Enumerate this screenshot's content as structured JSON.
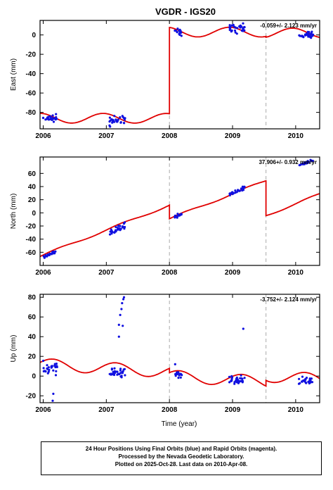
{
  "figure": {
    "title": "VGDR - IGS20",
    "xlabel": "Time (year)",
    "caption": [
      "24 Hour Positions Using Final Orbits (blue) and Rapid Orbits (magenta).",
      "Processed by the Nevada Geodetic Laboratory.",
      "Plotted on 2025-Oct-28. Last data on 2010-Apr-08."
    ]
  },
  "colors": {
    "data": "#1010e0",
    "model": "#e00000",
    "breakline": "#aaaaaa",
    "frame": "#000000"
  },
  "chart_data": [
    {
      "type": "scatter",
      "component": "east",
      "ylabel": "East (mm)",
      "rate_text": "-0.059+/- 2.123 mm/yr",
      "xlim": [
        2005.95,
        2010.38
      ],
      "ylim": [
        -97,
        15
      ],
      "xticks": [
        "2006",
        "2007",
        "2008",
        "2009",
        "2010"
      ],
      "yticks": [
        -80,
        -60,
        -40,
        -20,
        0
      ],
      "grid": false,
      "breaks": [
        2008.0,
        2009.53
      ],
      "model_offsets": [
        [
          2005.95,
          -86
        ],
        [
          2008.0,
          3
        ],
        [
          2009.53,
          2
        ]
      ],
      "model_amplitude": 5,
      "model_phase": 0.3,
      "model_rate": -0.06,
      "clusters": [
        {
          "start": 2006.0,
          "end": 2006.22,
          "center": -86,
          "spread": 3,
          "n": 26
        },
        {
          "start": 2007.05,
          "end": 2007.3,
          "center": -89,
          "spread": 4,
          "n": 30
        },
        {
          "start": 2008.08,
          "end": 2008.2,
          "center": 3,
          "spread": 3,
          "n": 18
        },
        {
          "start": 2008.95,
          "end": 2009.2,
          "center": 7,
          "spread": 4,
          "n": 30
        },
        {
          "start": 2010.05,
          "end": 2010.28,
          "center": 0,
          "spread": 3,
          "n": 26
        }
      ]
    },
    {
      "type": "scatter",
      "component": "north",
      "ylabel": "North (mm)",
      "rate_text": "37.906+/- 0.932 mm/yr",
      "xlim": [
        2005.95,
        2010.38
      ],
      "ylim": [
        -80,
        85
      ],
      "xticks": [
        "2006",
        "2007",
        "2008",
        "2009",
        "2010"
      ],
      "yticks": [
        -60,
        -40,
        -20,
        0,
        20,
        40,
        60
      ],
      "grid": false,
      "breaks": [
        2008.0,
        2009.53
      ],
      "model_offsets": [
        [
          2005.95,
          -66
        ],
        [
          2008.0,
          -9
        ],
        [
          2009.53,
          -4
        ]
      ],
      "model_amplitude": 1.5,
      "model_phase": 0.0,
      "model_rate": 37.9,
      "clusters": [
        {
          "start": 2006.0,
          "end": 2006.22,
          "center": -63,
          "spread": 2,
          "n": 22
        },
        {
          "start": 2007.05,
          "end": 2007.3,
          "center": -24,
          "spread": 4,
          "n": 30
        },
        {
          "start": 2008.08,
          "end": 2008.2,
          "center": -4,
          "spread": 2,
          "n": 16
        },
        {
          "start": 2008.95,
          "end": 2009.2,
          "center": 33,
          "spread": 3,
          "n": 30
        },
        {
          "start": 2010.05,
          "end": 2010.28,
          "center": 76,
          "spread": 2,
          "n": 24
        }
      ]
    },
    {
      "type": "scatter",
      "component": "up",
      "ylabel": "Up (mm)",
      "rate_text": "-3.752+/- 2.124 mm/yr",
      "xlim": [
        2005.95,
        2010.38
      ],
      "ylim": [
        -27,
        83
      ],
      "xticks": [
        "2006",
        "2007",
        "2008",
        "2009",
        "2010"
      ],
      "yticks": [
        -20,
        0,
        20,
        40,
        60,
        80
      ],
      "grid": false,
      "breaks": [
        2008.0,
        2009.53
      ],
      "model_offsets": [
        [
          2005.95,
          12
        ],
        [
          2008.0,
          0
        ],
        [
          2009.53,
          0
        ]
      ],
      "model_amplitude": 6,
      "model_phase": 0.1,
      "model_rate": -3.75,
      "clusters": [
        {
          "start": 2006.0,
          "end": 2006.22,
          "center": 8,
          "spread": 6,
          "n": 28
        },
        {
          "start": 2007.05,
          "end": 2007.3,
          "center": 4,
          "spread": 4,
          "n": 32
        },
        {
          "start": 2008.08,
          "end": 2008.2,
          "center": 1,
          "spread": 4,
          "n": 16
        },
        {
          "start": 2008.95,
          "end": 2009.2,
          "center": -5,
          "spread": 5,
          "n": 32
        },
        {
          "start": 2010.05,
          "end": 2010.28,
          "center": -5,
          "spread": 4,
          "n": 26
        }
      ],
      "outliers": [
        [
          2006.15,
          -25
        ],
        [
          2006.16,
          -18
        ],
        [
          2007.2,
          52
        ],
        [
          2007.22,
          62
        ],
        [
          2007.25,
          74
        ],
        [
          2007.27,
          78
        ],
        [
          2007.28,
          80
        ],
        [
          2007.24,
          68
        ],
        [
          2007.26,
          51
        ],
        [
          2007.2,
          40
        ],
        [
          2009.17,
          48
        ],
        [
          2008.09,
          12
        ]
      ]
    }
  ]
}
